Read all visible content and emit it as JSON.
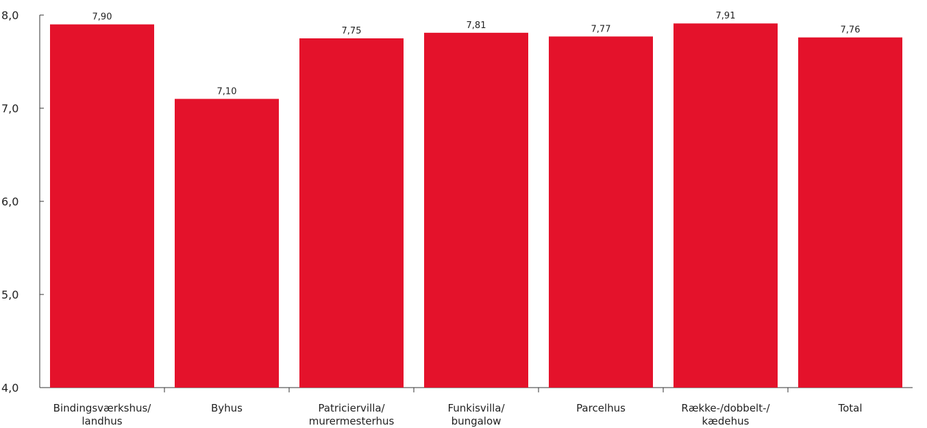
{
  "chart_data": {
    "type": "bar",
    "categories": [
      [
        "Bindingsværkshus/",
        "landhus"
      ],
      [
        "Byhus"
      ],
      [
        "Patriciervilla/",
        "murermesterhus"
      ],
      [
        "Funkisvilla/",
        "bungalow"
      ],
      [
        "Parcelhus"
      ],
      [
        "Række-/dobbelt-/",
        "kædehus"
      ],
      [
        "Total"
      ]
    ],
    "values": [
      7.9,
      7.1,
      7.75,
      7.81,
      7.77,
      7.91,
      7.76
    ],
    "value_labels": [
      "7,90",
      "7,10",
      "7,75",
      "7,81",
      "7,77",
      "7,91",
      "7,76"
    ],
    "ylim": [
      4.0,
      8.0
    ],
    "yticks": [
      4.0,
      5.0,
      6.0,
      7.0,
      8.0
    ],
    "ytick_labels": [
      "4,0",
      "5,0",
      "6,0",
      "7,0",
      "8,0"
    ],
    "bar_color": "#e4122b",
    "grid": false,
    "legend": "none",
    "title": "",
    "xlabel": "",
    "ylabel": ""
  }
}
